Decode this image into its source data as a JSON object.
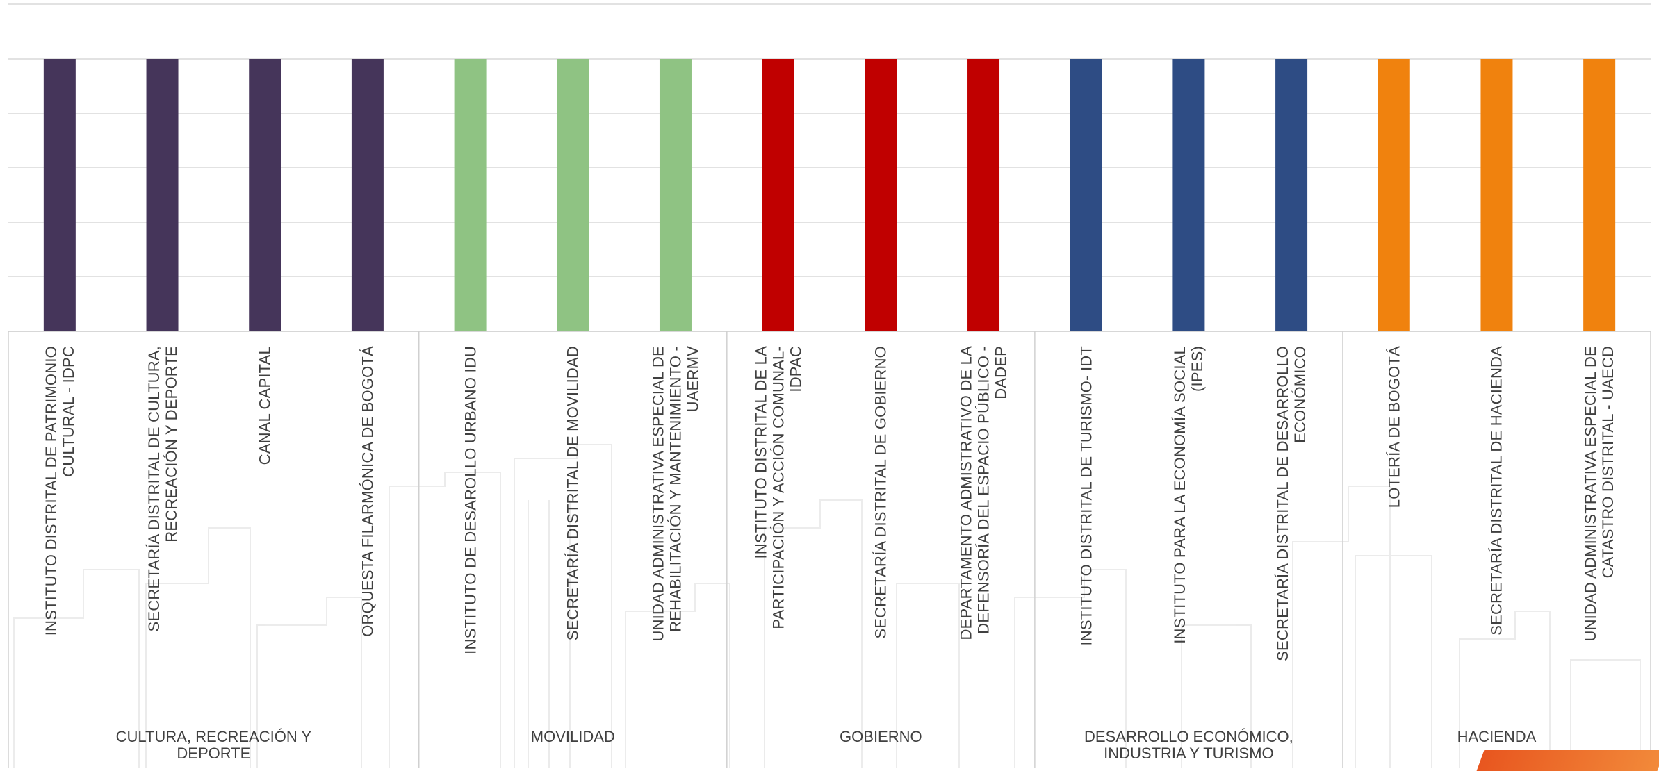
{
  "chart_data": {
    "type": "bar",
    "categories": [
      "INSTITUTO DISTRITAL DE PATRIMONIO CULTURAL - IDPC",
      "SECRETARÍA DISTRITAL DE CULTURA, RECREACIÓN Y DEPORTE",
      "CANAL CAPITAL",
      "ORQUESTA FILARMÓNICA DE BOGOTÁ",
      "INSTITUTO DE DESAROLLO URBANO IDU",
      "SECRETARÍA DISTRITAL DE MOVILIDAD",
      "UNIDAD ADMINISTRATIVA ESPECIAL DE REHABILITACIÓN Y MANTENIMIENTO - UAERMV",
      "INSTITUTO DISTRITAL DE  LA PARTICIPACIÓN Y ACCIÓN COMUNAL-IDPAC",
      "SECRETARÍA DISTRITAL DE GOBIERNO",
      "DEPARTAMENTO ADMISTRATIVO DE LA DEFENSORÍA DEL ESPACIO PÚBLICO - DADEP",
      "INSTITUTO DISTRITAL DE TURISMO- IDT",
      "INSTITUTO PARA LA ECONOMÍA SOCIAL (IPES)",
      "SECRETARÍA DISTRITAL DE DESARROLLO ECONÓMICO",
      "LOTERÍA DE BOGOTÁ",
      "SECRETARÍA DISTRITAL DE HACIENDA",
      "UNIDAD ADMINISTRATIVA ESPECIAL DE CATASTRO DISTRITAL - UAECD"
    ],
    "groups": [
      {
        "name": "CULTURA, RECREACIÓN Y DEPORTE",
        "count": 4,
        "color": "#45355a"
      },
      {
        "name": "MOVILIDAD",
        "count": 3,
        "color": "#8fc383"
      },
      {
        "name": "GOBIERNO",
        "count": 3,
        "color": "#c00000"
      },
      {
        "name": "DESARROLLO ECONÓMICO, INDUSTRIA Y TURISMO",
        "count": 3,
        "color": "#2e4c84"
      },
      {
        "name": "HACIENDA",
        "count": 3,
        "color": "#f0820e"
      }
    ],
    "values": [
      1,
      1,
      1,
      1,
      1,
      1,
      1,
      1,
      1,
      1,
      1,
      1,
      1,
      1,
      1,
      1
    ],
    "ylim": [
      0,
      1
    ],
    "grid": true,
    "title": "",
    "xlabel": "",
    "ylabel": ""
  }
}
